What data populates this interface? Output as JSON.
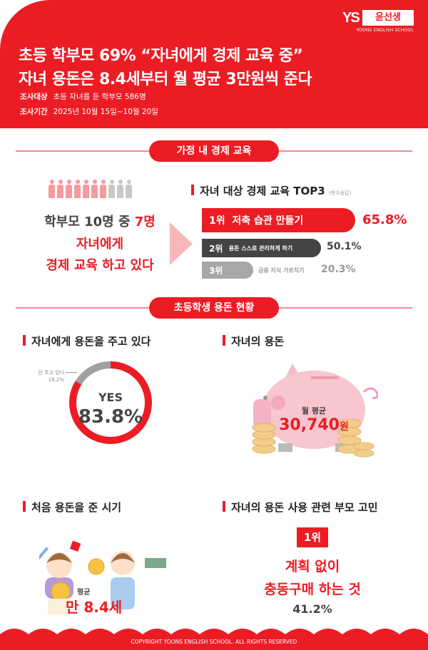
{
  "colors": {
    "accent": "#ec1c24",
    "dark": "#444444",
    "gray": "#a7a7a7",
    "pink": "#f7c6cf"
  },
  "logo": {
    "mark": "YS",
    "name": "윤선생",
    "sub": "YOONS ENGLISH SCHOOL"
  },
  "header": {
    "title_line1": "초등 학부모 69% “자녀에게 경제 교육 중”",
    "title_line2": "자녀 용돈은 8.4세부터 월 평균 3만원씩 준다",
    "target_label": "조사대상",
    "target_value": "초등 자녀를 둔 학부모 586명",
    "period_label": "조사기간",
    "period_value": "2025년 10월 15일~10월 20일"
  },
  "section1": {
    "pill": "가정 내 경제 교육",
    "people": {
      "total": 10,
      "highlighted": 7
    },
    "stat_line1_a": "학부모 10명 중 ",
    "stat_line1_b": "7명",
    "stat_line2": "자녀에게",
    "stat_line3": "경제 교육 하고 있다",
    "top3_title": "자녀 대상 경제 교육 TOP3",
    "top3_note": "(복수응답)",
    "top3": [
      {
        "rank": "1위",
        "label": "저축 습관 만들기",
        "value": "65.8%",
        "pct": 65.8
      },
      {
        "rank": "2위",
        "label": "용돈 스스로 관리하게 하기",
        "value": "50.1%",
        "pct": 50.1
      },
      {
        "rank": "3위",
        "label": "금융 지식 가르치기",
        "value": "20.3%",
        "pct": 20.3
      }
    ]
  },
  "section2": {
    "pill": "초등학생 용돈 현황",
    "giving_title": "자녀에게 용돈을 주고 있다",
    "donut": {
      "yes_label": "YES",
      "yes_value": "83.8%",
      "yes_pct": 83.8,
      "no_label": "안 주고 있다",
      "no_value": "16.2%",
      "no_pct": 16.2
    },
    "allowance_title": "자녀의 용돈",
    "allowance_label": "월 평균",
    "allowance_amount": "30,740",
    "allowance_unit": "원",
    "first_title": "처음 용돈을 준 시기",
    "first_label": "평균",
    "first_value": "만 8.4세",
    "worry_title": "자녀의 용돈 사용 관련 부모 고민",
    "worry_rank": "1위",
    "worry_line1": "계획 없이",
    "worry_line2": "충동구매 하는 것",
    "worry_value": "41.2%"
  },
  "footer": {
    "copyright": "COPYRIGHT YOONS ENGLISH SCHOOL. ALL RIGHTS RESERVED"
  }
}
